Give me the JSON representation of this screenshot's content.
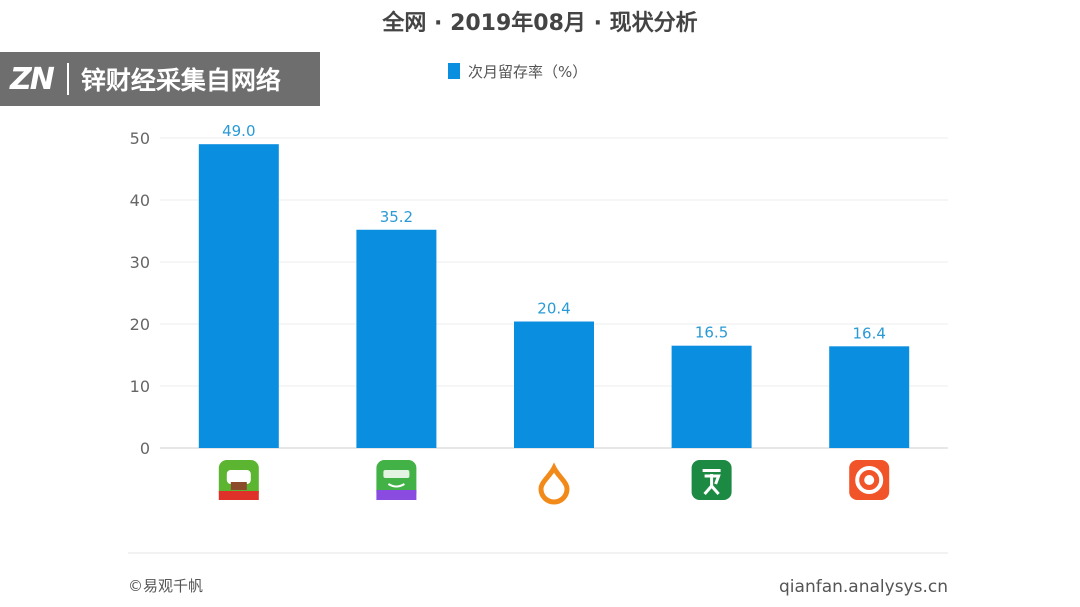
{
  "watermark": {
    "logo": "ZN",
    "text": "锌财经采集自网络"
  },
  "footer": {
    "source": "©易观千帆",
    "site": "qianfan.analysys.cn"
  },
  "colors": {
    "bar": "#0a8ee0",
    "label": "#2a9ad6"
  },
  "chart_data": {
    "type": "bar",
    "title": "全网 · 2019年08月 · 现状分析",
    "legend": {
      "position": "top-center",
      "entries": [
        "次月留存率（%）"
      ]
    },
    "categories": [
      "app-icon-1",
      "app-icon-2",
      "app-icon-3",
      "app-icon-4",
      "app-icon-5"
    ],
    "series": [
      {
        "name": "次月留存率（%）",
        "values": [
          49.0,
          35.2,
          20.4,
          16.5,
          16.4
        ]
      }
    ],
    "value_labels": [
      "49.0",
      "35.2",
      "20.4",
      "16.5",
      "16.4"
    ],
    "y_ticks": [
      "0",
      "10",
      "20",
      "30",
      "40",
      "50"
    ],
    "ylim": [
      0,
      50
    ],
    "grid": true,
    "icons": [
      {
        "name": "app-icon-1",
        "bg": "#5cb531",
        "accent": "#e0302a"
      },
      {
        "name": "app-icon-2",
        "bg": "#43b246",
        "accent": "#8a4be0"
      },
      {
        "name": "app-icon-3",
        "bg": "#ffffff",
        "accent": "#f28a1a"
      },
      {
        "name": "app-icon-4",
        "bg": "#1d8a43",
        "accent": "#ffffff"
      },
      {
        "name": "app-icon-5",
        "bg": "#f2542a",
        "accent": "#ffffff"
      }
    ]
  }
}
